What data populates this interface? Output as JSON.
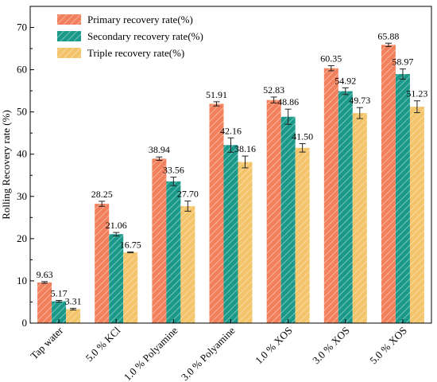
{
  "chart_data": {
    "type": "bar",
    "ylabel": "Rolling Recovery rate (%)",
    "xlabel": "",
    "ylim": [
      0,
      75
    ],
    "yticks": [
      0,
      10,
      20,
      30,
      40,
      50,
      60,
      70
    ],
    "categories": [
      "Tap water",
      "5.0 % KCl",
      "1.0 % Polyamine",
      "3.0 % Polyamine",
      "1.0 % XOS",
      "3.0 % XOS",
      "5.0 % XOS"
    ],
    "series": [
      {
        "name": "Primary recovery rate(%)",
        "values": [
          9.63,
          28.25,
          38.94,
          51.91,
          52.83,
          60.35,
          65.88
        ],
        "labels": [
          "9.63",
          "28.25",
          "38.94",
          "51.91",
          "52.83",
          "60.35",
          "65.88"
        ],
        "errors": [
          0.2,
          0.6,
          0.4,
          0.5,
          0.7,
          0.6,
          0.4
        ],
        "color": "#f2805c",
        "hatch_color": "#f8c2ae"
      },
      {
        "name": "Secondary recovery rate(%)",
        "values": [
          5.17,
          21.06,
          33.56,
          42.16,
          48.86,
          54.92,
          58.97
        ],
        "labels": [
          "5.17",
          "21.06",
          "33.56",
          "42.16",
          "48.86",
          "54.92",
          "58.97"
        ],
        "errors": [
          0.2,
          0.4,
          1.0,
          1.7,
          1.8,
          0.8,
          1.2
        ],
        "color": "#1a998a",
        "hatch_color": "#8fd0c6"
      },
      {
        "name": "Triple recovery rate(%)",
        "values": [
          3.31,
          16.75,
          27.7,
          38.16,
          41.5,
          49.73,
          51.23
        ],
        "labels": [
          "3.31",
          "16.75",
          "27.70",
          "38.16",
          "41.50",
          "49.73",
          "51.23"
        ],
        "errors": [
          0.2,
          0.1,
          1.2,
          1.4,
          1.0,
          1.3,
          1.4
        ],
        "color": "#f3c46a",
        "hatch_color": "#f9e1b3"
      }
    ],
    "legend_position": "top-left",
    "grid": false
  }
}
